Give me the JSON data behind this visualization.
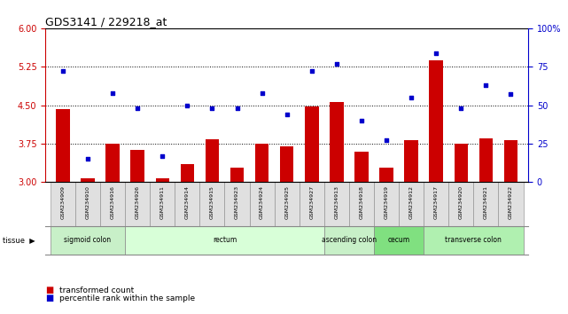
{
  "title": "GDS3141 / 229218_at",
  "samples": [
    "GSM234909",
    "GSM234910",
    "GSM234916",
    "GSM234926",
    "GSM234911",
    "GSM234914",
    "GSM234915",
    "GSM234923",
    "GSM234924",
    "GSM234925",
    "GSM234927",
    "GSM234913",
    "GSM234918",
    "GSM234919",
    "GSM234912",
    "GSM234917",
    "GSM234920",
    "GSM234921",
    "GSM234922"
  ],
  "bar_values": [
    4.42,
    3.07,
    3.75,
    3.62,
    3.07,
    3.35,
    3.83,
    3.28,
    3.75,
    3.7,
    4.47,
    4.57,
    3.6,
    3.28,
    3.82,
    5.38,
    3.75,
    3.85,
    3.82
  ],
  "dot_values": [
    72,
    15,
    58,
    48,
    17,
    50,
    48,
    48,
    58,
    44,
    72,
    77,
    40,
    27,
    55,
    84,
    48,
    63,
    57
  ],
  "ylim_left": [
    3,
    6
  ],
  "ylim_right": [
    0,
    100
  ],
  "yticks_left": [
    3,
    3.75,
    4.5,
    5.25,
    6
  ],
  "yticks_right": [
    0,
    25,
    50,
    75,
    100
  ],
  "ytick_labels_right": [
    "0",
    "25",
    "50",
    "75",
    "100%"
  ],
  "hlines": [
    3.75,
    4.5,
    5.25
  ],
  "bar_color": "#CC0000",
  "dot_color": "#0000CC",
  "background_color": "#ffffff",
  "tissue_groups": [
    {
      "label": "sigmoid colon",
      "start": 0,
      "end": 3,
      "color": "#c8f0c8"
    },
    {
      "label": "rectum",
      "start": 3,
      "end": 11,
      "color": "#d8ffd8"
    },
    {
      "label": "ascending colon",
      "start": 11,
      "end": 13,
      "color": "#c8f0c8"
    },
    {
      "label": "cecum",
      "start": 13,
      "end": 15,
      "color": "#80e080"
    },
    {
      "label": "transverse colon",
      "start": 15,
      "end": 19,
      "color": "#b0f0b0"
    }
  ],
  "legend_items": [
    {
      "label": "transformed count",
      "color": "#CC0000"
    },
    {
      "label": "percentile rank within the sample",
      "color": "#0000CC"
    }
  ],
  "tick_color_left": "#CC0000",
  "tick_color_right": "#0000CC",
  "sample_box_color": "#e0e0e0",
  "sample_box_edge": "#888888"
}
